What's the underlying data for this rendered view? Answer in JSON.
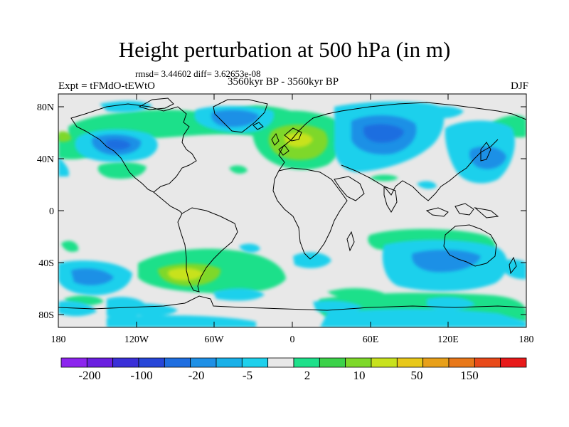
{
  "title": "Height perturbation at 500 hPa (in m)",
  "stats": "rmsd= 3.44602 diff= 3.62653e-08",
  "experiment": "Expt = tFMdO-tEWtO",
  "period": "3560kyr BP - 3560kyr BP",
  "season": "DJF",
  "map": {
    "projection": "cylindrical equidistant",
    "lon_range": [
      -180,
      180
    ],
    "lat_range": [
      -90,
      90
    ],
    "lat_tick_labels": [
      "80N",
      "40N",
      "0",
      "40S",
      "80S"
    ],
    "lon_tick_labels": [
      "180",
      "120W",
      "60W",
      "0",
      "60E",
      "120E",
      "180"
    ],
    "background_color": "#e8e8e8",
    "coastline_color": "#000000"
  },
  "colorbar": {
    "levels_shown": [
      "-200",
      "-100",
      "-20",
      "-5",
      "2",
      "10",
      "50",
      "150"
    ],
    "colors": [
      "#8c24ee",
      "#6a1fe0",
      "#3a2fd8",
      "#2746d8",
      "#1f6ee0",
      "#1e90e6",
      "#19b0e8",
      "#1ed0ec",
      "#e8e8e8",
      "#1ee08a",
      "#3cd24a",
      "#7ed82a",
      "#c8e21e",
      "#e8c81a",
      "#e8a01a",
      "#e8781a",
      "#e84a1a",
      "#e81a1a"
    ]
  }
}
